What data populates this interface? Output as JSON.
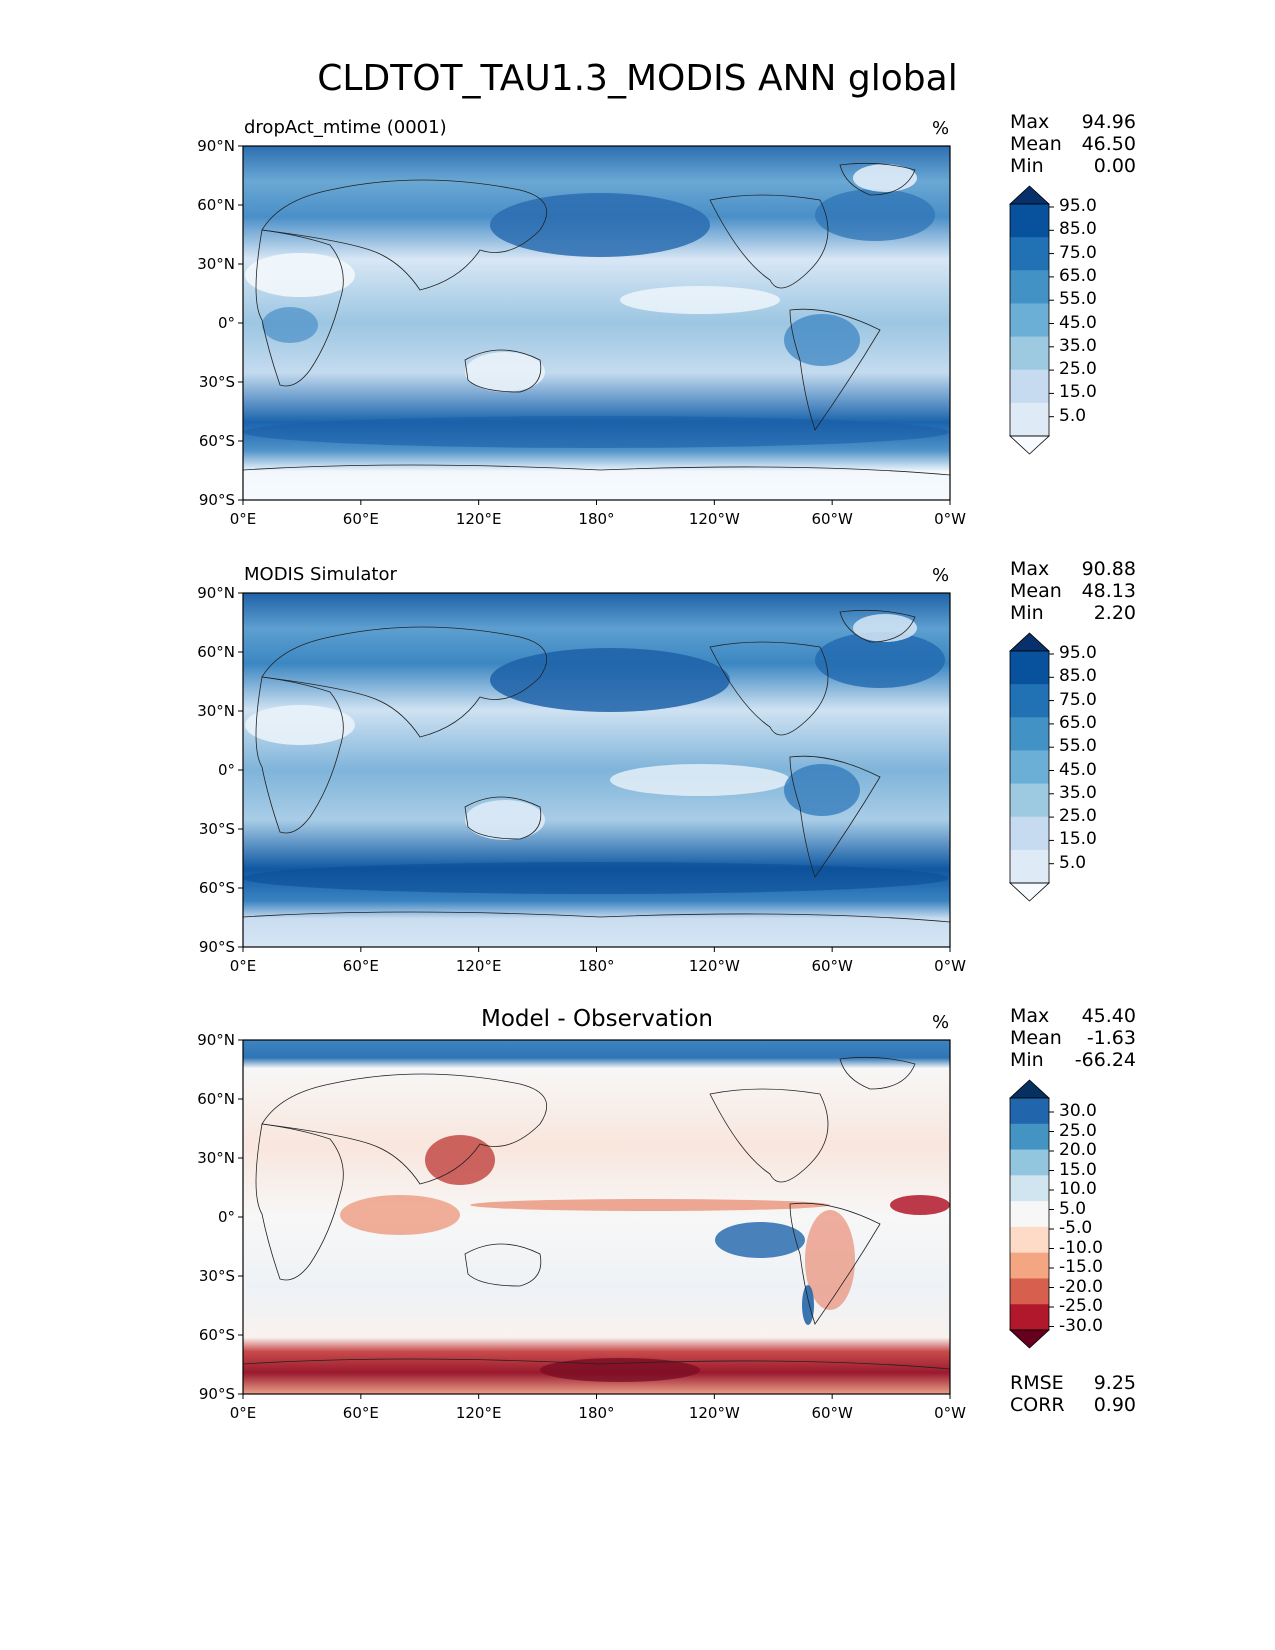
{
  "title": "CLDTOT_TAU1.3_MODIS ANN global",
  "units": "%",
  "lat_ticks": [
    "90°N",
    "60°N",
    "30°N",
    "0°",
    "30°S",
    "60°S",
    "90°S"
  ],
  "lon_ticks": [
    "0°E",
    "60°E",
    "120°E",
    "180°",
    "120°W",
    "60°W",
    "0°W"
  ],
  "stat_labels": {
    "max": "Max",
    "mean": "Mean",
    "min": "Min",
    "rmse": "RMSE",
    "corr": "CORR"
  },
  "colors": {
    "blues": [
      "#f7fbff",
      "#deebf7",
      "#c6dbef",
      "#9ecae1",
      "#6baed6",
      "#4292c6",
      "#2171b5",
      "#08519c",
      "#08306b"
    ],
    "diverging": [
      "#67001f",
      "#b2182b",
      "#d6604d",
      "#f4a582",
      "#fddbc7",
      "#f7f7f7",
      "#d1e5f0",
      "#92c5de",
      "#4393c3",
      "#2166ac",
      "#053061"
    ]
  },
  "chart_data": [
    {
      "type": "heatmap",
      "panel_title": "dropAct_mtime (0001)",
      "units": "%",
      "stats": {
        "max": "94.96",
        "mean": "46.50",
        "min": "0.00"
      },
      "colorbar_ticks": [
        "95.0",
        "85.0",
        "75.0",
        "65.0",
        "55.0",
        "45.0",
        "35.0",
        "25.0",
        "15.0",
        "5.0"
      ],
      "x_range": [
        0,
        360
      ],
      "y_range": [
        -90,
        90
      ]
    },
    {
      "type": "heatmap",
      "panel_title": "MODIS Simulator",
      "units": "%",
      "stats": {
        "max": "90.88",
        "mean": "48.13",
        "min": "2.20"
      },
      "colorbar_ticks": [
        "95.0",
        "85.0",
        "75.0",
        "65.0",
        "55.0",
        "45.0",
        "35.0",
        "25.0",
        "15.0",
        "5.0"
      ],
      "x_range": [
        0,
        360
      ],
      "y_range": [
        -90,
        90
      ]
    },
    {
      "type": "heatmap",
      "panel_title": "Model - Observation",
      "units": "%",
      "stats": {
        "max": "45.40",
        "mean": "-1.63",
        "min": "-66.24",
        "rmse": "9.25",
        "corr": "0.90"
      },
      "colorbar_ticks": [
        "30.0",
        "25.0",
        "20.0",
        "15.0",
        "10.0",
        "5.0",
        "-5.0",
        "-10.0",
        "-15.0",
        "-20.0",
        "-25.0",
        "-30.0"
      ],
      "x_range": [
        0,
        360
      ],
      "y_range": [
        -90,
        90
      ]
    }
  ]
}
